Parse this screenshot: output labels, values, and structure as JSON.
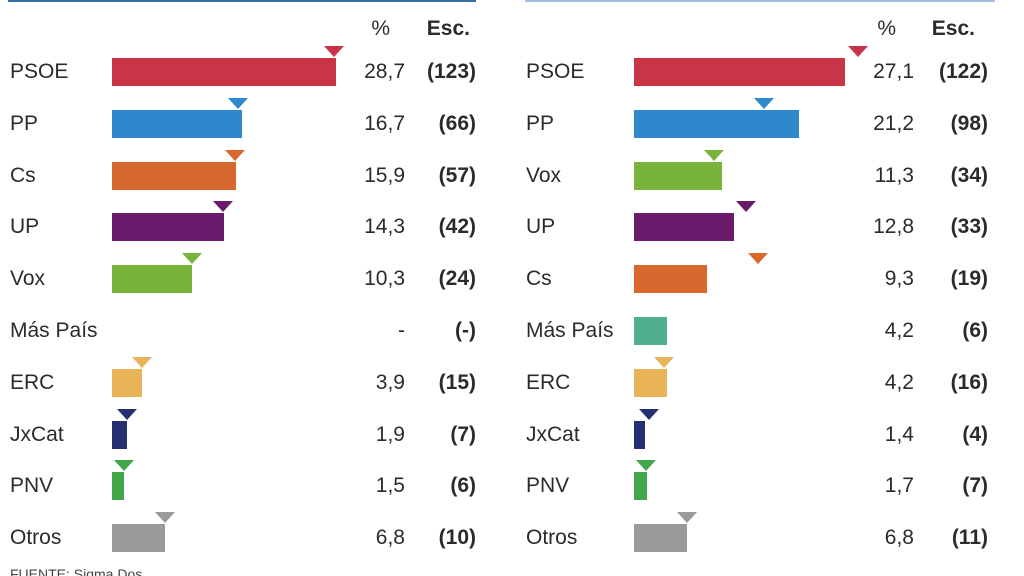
{
  "headers": {
    "pct": "%",
    "seats": "Esc."
  },
  "colors": {
    "PSOE": "#c83448",
    "PP": "#2f88cc",
    "Cs": "#d9682e",
    "UP": "#6a1a6a",
    "Vox": "#7ab33a",
    "Más País": "#4faf8e",
    "ERC": "#e9b35a",
    "JxCat": "#262f72",
    "PNV": "#42a74a",
    "Otros": "#9a9a9a"
  },
  "chart_data": [
    {
      "type": "bar",
      "orientation": "horizontal",
      "xlim": [
        0,
        30
      ],
      "categories": [
        "PSOE",
        "PP",
        "Cs",
        "UP",
        "Vox",
        "Más País",
        "ERC",
        "JxCat",
        "PNV",
        "Otros"
      ],
      "values": [
        28.7,
        16.7,
        15.9,
        14.3,
        10.3,
        null,
        3.9,
        1.9,
        1.5,
        6.8
      ],
      "pct_labels": [
        "28,7",
        "16,7",
        "15,9",
        "14,3",
        "10,3",
        "-",
        "3,9",
        "1,9",
        "1,5",
        "6,8"
      ],
      "seat_labels": [
        "(123)",
        "(66)",
        "(57)",
        "(42)",
        "(24)",
        "(-)",
        "(15)",
        "(7)",
        "(6)",
        "(10)"
      ],
      "markers": [
        28.4,
        16.2,
        15.8,
        14.2,
        10.2,
        null,
        3.9,
        1.9,
        1.5,
        6.8
      ]
    },
    {
      "type": "bar",
      "orientation": "horizontal",
      "xlim": [
        0,
        30
      ],
      "categories": [
        "PSOE",
        "PP",
        "Vox",
        "UP",
        "Cs",
        "Más País",
        "ERC",
        "JxCat",
        "PNV",
        "Otros"
      ],
      "values": [
        27.1,
        21.2,
        11.3,
        12.8,
        9.3,
        4.2,
        4.2,
        1.4,
        1.7,
        6.8
      ],
      "pct_labels": [
        "27,1",
        "21,2",
        "11,3",
        "12,8",
        "9,3",
        "4,2",
        "4,2",
        "1,4",
        "1,7",
        "6,8"
      ],
      "seat_labels": [
        "(122)",
        "(98)",
        "(34)",
        "(33)",
        "(19)",
        "(6)",
        "(16)",
        "(4)",
        "(7)",
        "(11)"
      ],
      "markers": [
        28.7,
        16.7,
        10.3,
        14.3,
        15.9,
        null,
        3.9,
        1.9,
        1.5,
        6.8
      ]
    }
  ],
  "footer": "FUENTE: Sigma Dos"
}
